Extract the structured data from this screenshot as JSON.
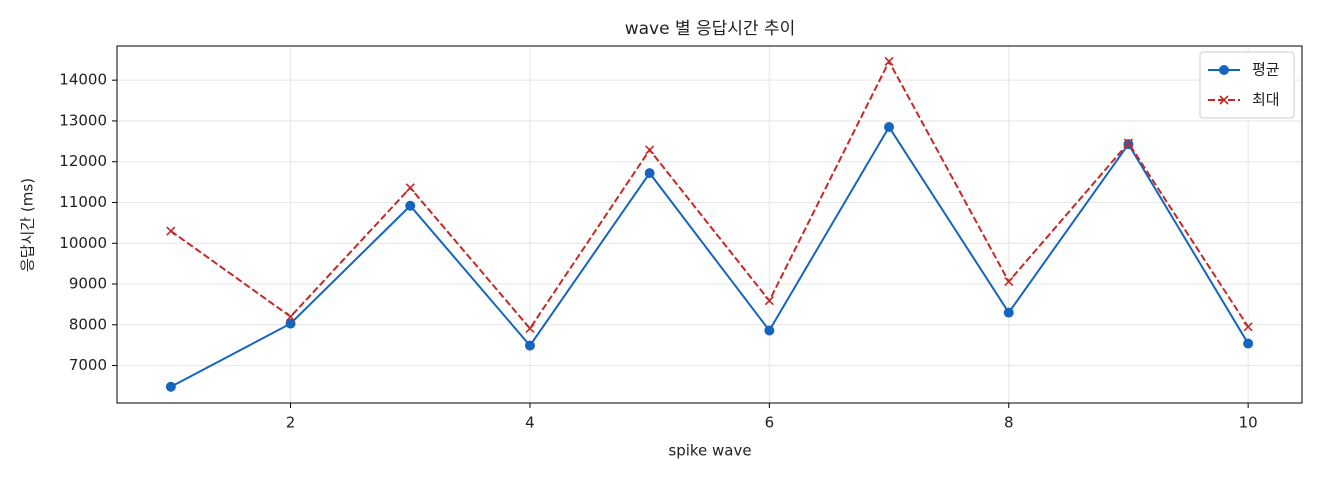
{
  "chart_data": {
    "type": "line",
    "title": "wave 별 응답시간 추이",
    "xlabel": "spike wave",
    "ylabel": "응답시간 (ms)",
    "x": [
      1,
      2,
      3,
      4,
      5,
      6,
      7,
      8,
      9,
      10
    ],
    "series": [
      {
        "name": "평균",
        "color": "#1565c0",
        "marker": "o",
        "linestyle": "solid",
        "values": [
          6480,
          8030,
          10920,
          7490,
          11720,
          7860,
          12850,
          8300,
          12430,
          7540
        ]
      },
      {
        "name": "최대",
        "color": "#c62828",
        "marker": "x",
        "linestyle": "dashed",
        "values": [
          10300,
          8200,
          11360,
          7910,
          12290,
          8590,
          14460,
          9060,
          12460,
          7950
        ]
      }
    ],
    "xlim": [
      0.55,
      10.45
    ],
    "ylim": [
      6082,
      14838
    ],
    "xticks": [
      2,
      4,
      6,
      8,
      10
    ],
    "yticks": [
      7000,
      8000,
      9000,
      10000,
      11000,
      12000,
      13000,
      14000
    ],
    "grid": true,
    "legend": "upper right"
  }
}
